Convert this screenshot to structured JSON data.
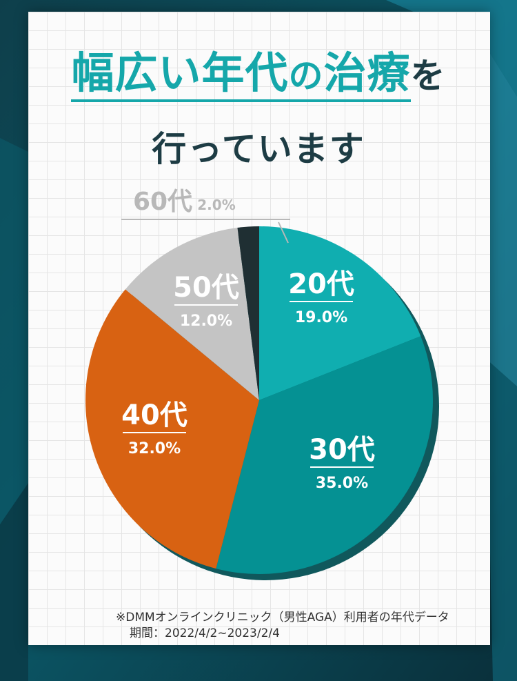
{
  "title": {
    "highlight": "幅広い年代",
    "particle1": "の",
    "highlight2": "治療",
    "particle2": "を",
    "line2": "行っています"
  },
  "chart_data": {
    "type": "pie",
    "slices": [
      {
        "label": "20代",
        "value": 19.0,
        "value_label": "19.0%",
        "color": "#10aeb0"
      },
      {
        "label": "30代",
        "value": 35.0,
        "value_label": "35.0%",
        "color": "#059193"
      },
      {
        "label": "40代",
        "value": 32.0,
        "value_label": "32.0%",
        "color": "#d86212"
      },
      {
        "label": "50代",
        "value": 12.0,
        "value_label": "12.0%",
        "color": "#c4c4c4"
      },
      {
        "label": "60代",
        "value": 2.0,
        "value_label": "2.0%",
        "color": "#1f2f33"
      }
    ]
  },
  "footnote": {
    "source": "※DMMオンラインクリニック（男性AGA）利用者の年代データ",
    "period": "期間：2022/4/2~2023/2/4"
  }
}
